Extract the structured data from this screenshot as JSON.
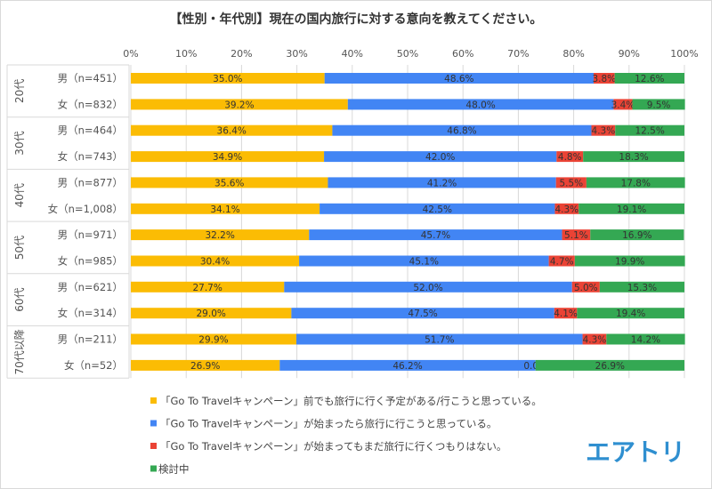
{
  "chart_data": {
    "type": "bar",
    "orientation": "horizontal",
    "stacked": "percent",
    "title": "【性別・年代別】現在の国内旅行に対する意向を教えてください。",
    "xlim": [
      0,
      100
    ],
    "xticks": [
      "0%",
      "10%",
      "20%",
      "30%",
      "40%",
      "50%",
      "60%",
      "70%",
      "80%",
      "90%",
      "100%"
    ],
    "grid": true,
    "legend_position": "bottom-left",
    "groups": [
      {
        "label": "20代",
        "rows": [
          {
            "label": "男（n=451）",
            "values": [
              35.0,
              48.6,
              3.8,
              12.6
            ]
          },
          {
            "label": "女（n=832）",
            "values": [
              39.2,
              48.0,
              3.4,
              9.5
            ]
          }
        ]
      },
      {
        "label": "30代",
        "rows": [
          {
            "label": "男（n=464）",
            "values": [
              36.4,
              46.8,
              4.3,
              12.5
            ]
          },
          {
            "label": "女（n=743）",
            "values": [
              34.9,
              42.0,
              4.8,
              18.3
            ]
          }
        ]
      },
      {
        "label": "40代",
        "rows": [
          {
            "label": "男（n=877）",
            "values": [
              35.6,
              41.2,
              5.5,
              17.8
            ]
          },
          {
            "label": "女（n=1,008）",
            "values": [
              34.1,
              42.5,
              4.3,
              19.1
            ]
          }
        ]
      },
      {
        "label": "50代",
        "rows": [
          {
            "label": "男（n=971）",
            "values": [
              32.2,
              45.7,
              5.1,
              16.9
            ]
          },
          {
            "label": "女（n=985）",
            "values": [
              30.4,
              45.1,
              4.7,
              19.9
            ]
          }
        ]
      },
      {
        "label": "60代",
        "rows": [
          {
            "label": "男（n=621）",
            "values": [
              27.7,
              52.0,
              5.0,
              15.3
            ]
          },
          {
            "label": "女（n=314）",
            "values": [
              29.0,
              47.5,
              4.1,
              19.4
            ]
          }
        ]
      },
      {
        "label": "70代以降",
        "rows": [
          {
            "label": "男（n=211）",
            "values": [
              29.9,
              51.7,
              4.3,
              14.2
            ]
          },
          {
            "label": "女（n=52）",
            "values": [
              26.9,
              46.2,
              0.0,
              26.9
            ]
          }
        ]
      }
    ],
    "series": [
      {
        "name": "「Go To Travelキャンペーン」前でも旅行に行く予定がある/行こうと思っている。",
        "color": "#fbbc04"
      },
      {
        "name": "「Go To Travelキャンペーン」が始まったら旅行に行こうと思っている。",
        "color": "#4285f4"
      },
      {
        "name": "「Go To Travelキャンペーン」が始まってもまだ旅行に行くつもりはない。",
        "color": "#ea4335"
      },
      {
        "name": "検討中",
        "color": "#34a853"
      }
    ]
  },
  "logo": {
    "text": "エアトリ",
    "color": "#2f8fd0"
  }
}
